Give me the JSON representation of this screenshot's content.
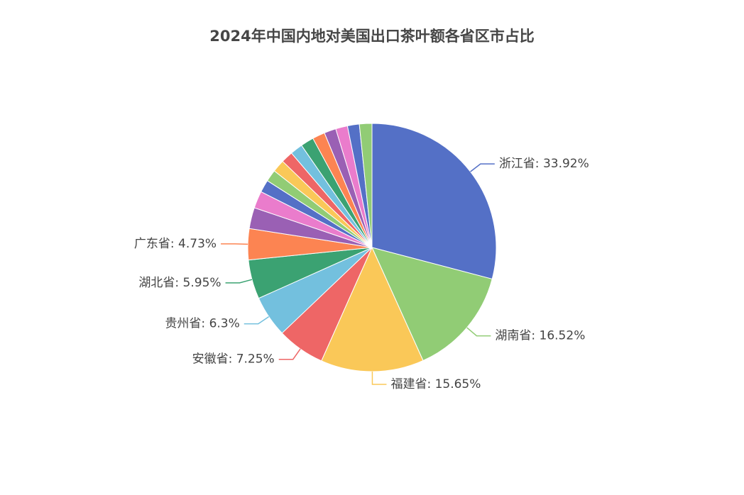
{
  "chart_data": {
    "type": "pie",
    "title": "2024年中国内地对美国出口茶叶额各省区市占比",
    "values": [
      33.92,
      16.52,
      15.65,
      7.25,
      6.3,
      5.95,
      4.73,
      3.2,
      2.6,
      1.9,
      1.8,
      1.9,
      1.8,
      1.9,
      2.0,
      1.9,
      1.8,
      1.8,
      1.8,
      1.9
    ],
    "value_labels": [
      "浙江省: 33.92%",
      "湖南省: 16.52%",
      "福建省: 15.65%",
      "安徽省: 7.25%",
      "贵州省: 6.3%",
      "湖北省: 5.95%",
      "广东省: 4.73%",
      null,
      null,
      null,
      null,
      null,
      null,
      null,
      null,
      null,
      null,
      null,
      null,
      null
    ],
    "colors": [
      "#5470c6",
      "#91cc75",
      "#fac858",
      "#ee6666",
      "#73c0de",
      "#3ba272",
      "#fc8452",
      "#9a60b4",
      "#ea7ccc",
      "#5470c6",
      "#91cc75",
      "#fac858",
      "#ee6666",
      "#73c0de",
      "#3ba272",
      "#fc8452",
      "#9a60b4",
      "#ea7ccc",
      "#5470c6",
      "#91cc75"
    ]
  }
}
